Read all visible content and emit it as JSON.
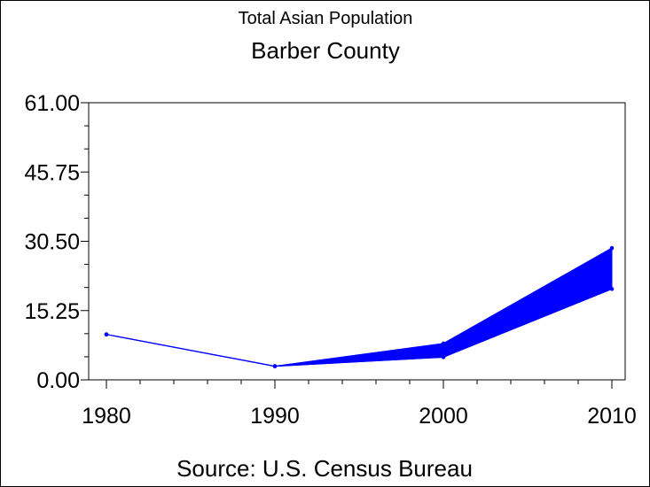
{
  "chart_data": {
    "type": "area",
    "title": "Total Asian Population",
    "subtitle": "Barber County",
    "footnote": "Source: U.S. Census Bureau",
    "xlabel": "",
    "ylabel": "",
    "x": [
      "1980",
      "1990",
      "2000",
      "2010"
    ],
    "ylim": [
      0,
      61
    ],
    "y_ticks": [
      "0.00",
      "15.25",
      "30.50",
      "45.75",
      "61.00"
    ],
    "series": [
      {
        "values": [
          10,
          3,
          8,
          29
        ]
      },
      {
        "values": [
          10,
          3,
          5,
          20
        ]
      }
    ],
    "band_between_series": true,
    "grid": false,
    "color": "#0000ff"
  }
}
